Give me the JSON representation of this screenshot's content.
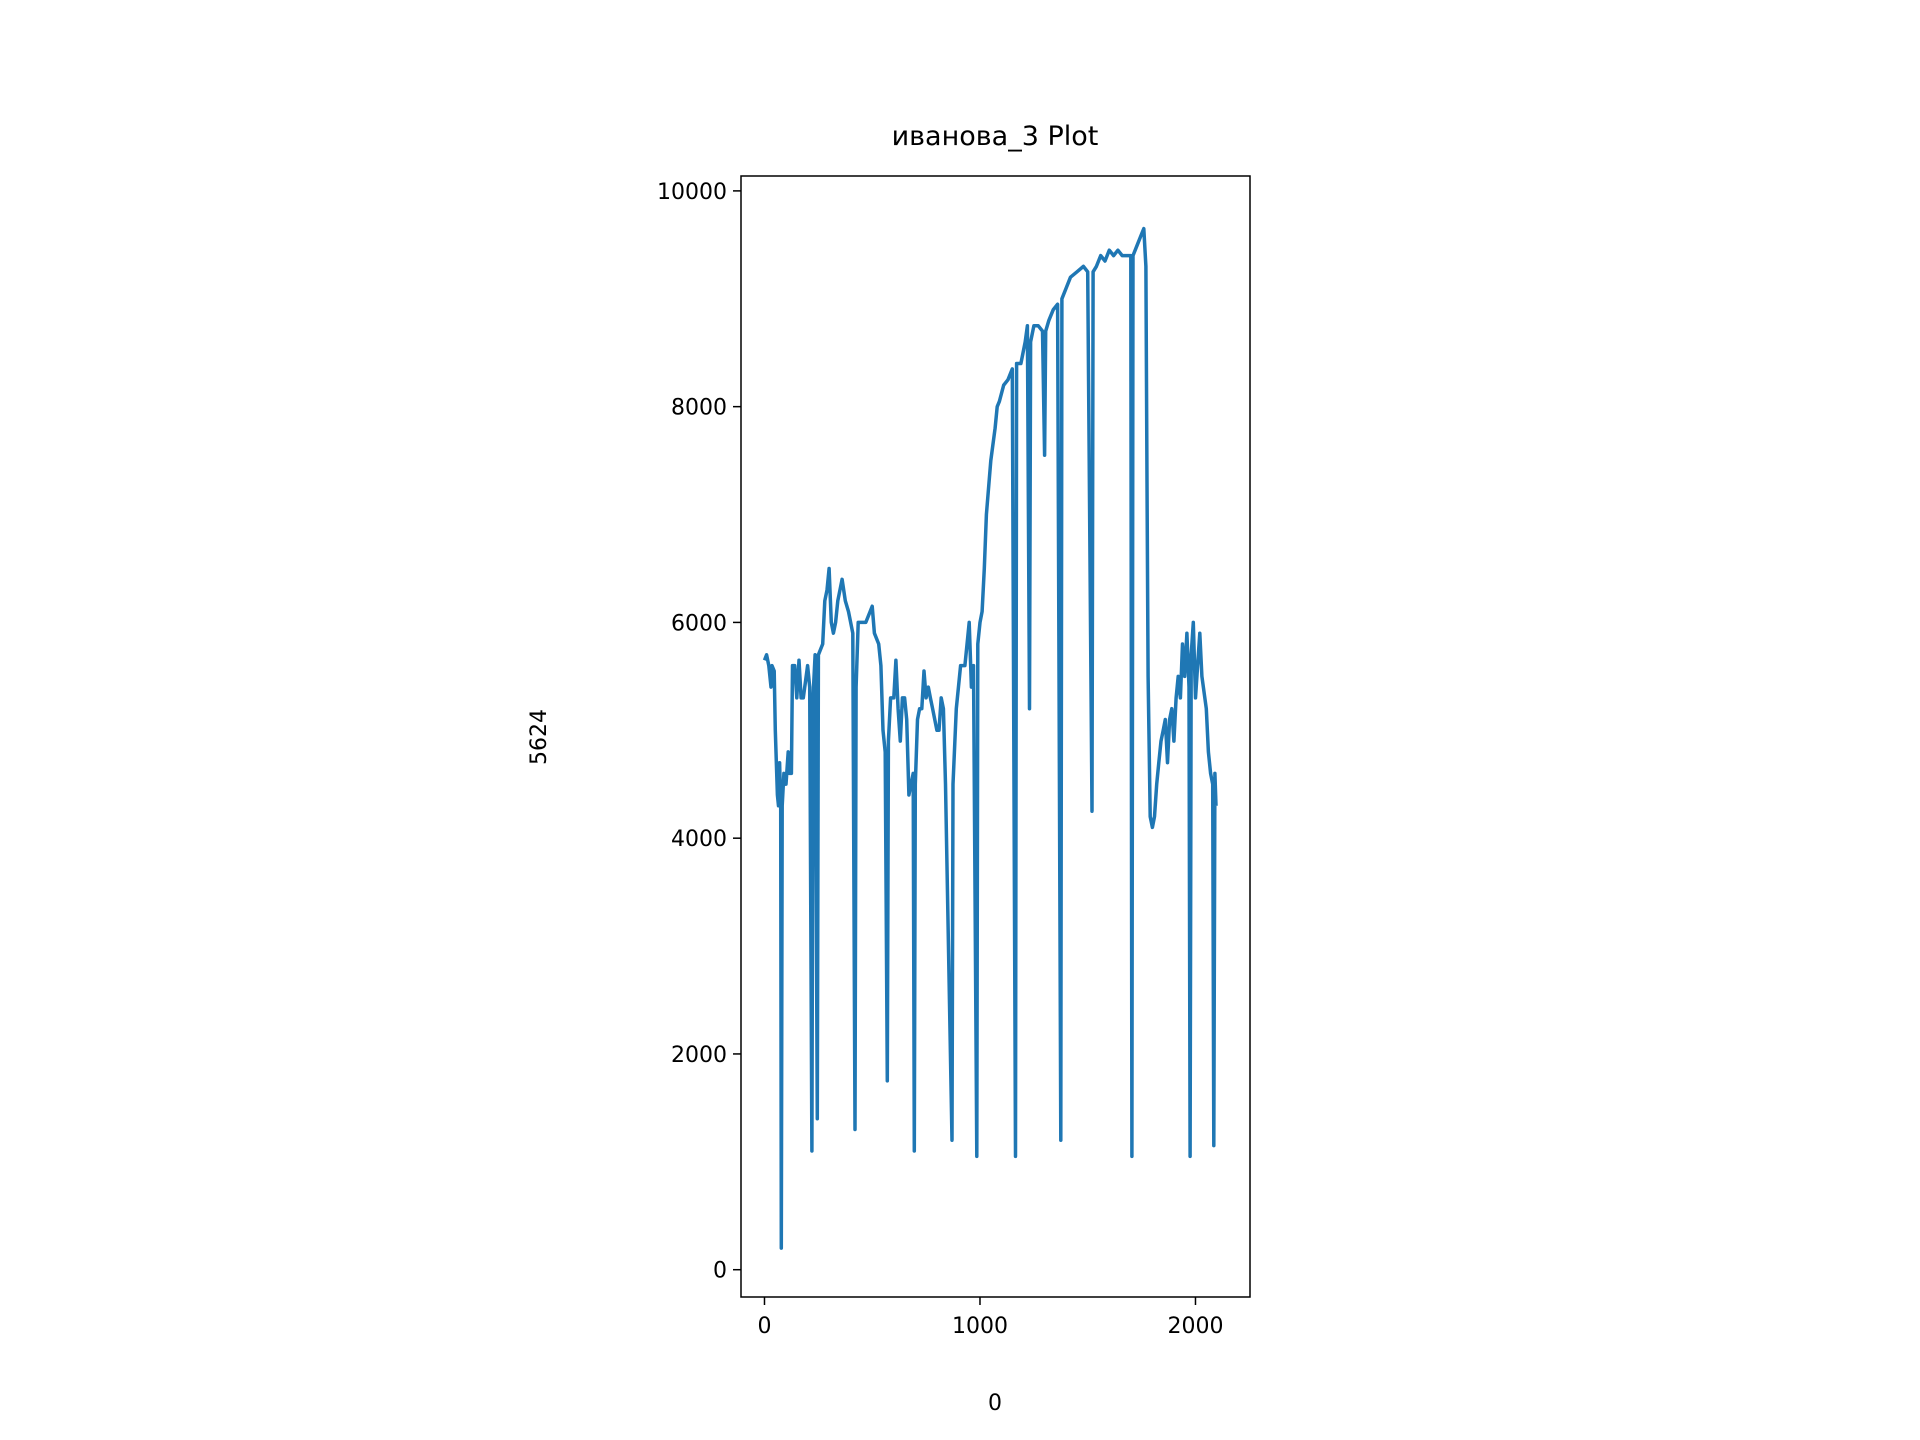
{
  "chart_data": {
    "type": "line",
    "title": "иванова_3 Plot",
    "x_label": "0",
    "y_label": "5624",
    "x": [
      0,
      10,
      20,
      30,
      35,
      45,
      50,
      60,
      65,
      70,
      75,
      78,
      82,
      90,
      100,
      110,
      115,
      125,
      130,
      140,
      150,
      160,
      170,
      180,
      200,
      210,
      220,
      225,
      235,
      245,
      250,
      270,
      280,
      290,
      300,
      310,
      320,
      330,
      340,
      360,
      375,
      390,
      410,
      420,
      425,
      435,
      450,
      470,
      490,
      500,
      510,
      530,
      540,
      550,
      560,
      570,
      575,
      585,
      600,
      610,
      620,
      630,
      640,
      650,
      660,
      670,
      690,
      695,
      700,
      710,
      720,
      730,
      740,
      750,
      760,
      770,
      780,
      800,
      810,
      820,
      830,
      840,
      870,
      875,
      890,
      910,
      930,
      950,
      960,
      970,
      985,
      990,
      1000,
      1010,
      1020,
      1030,
      1050,
      1070,
      1080,
      1090,
      1110,
      1130,
      1150,
      1165,
      1170,
      1190,
      1210,
      1220,
      1230,
      1235,
      1250,
      1270,
      1290,
      1300,
      1305,
      1320,
      1340,
      1360,
      1375,
      1380,
      1400,
      1420,
      1450,
      1480,
      1500,
      1520,
      1525,
      1540,
      1560,
      1580,
      1600,
      1620,
      1640,
      1660,
      1700,
      1705,
      1710,
      1730,
      1750,
      1760,
      1770,
      1775,
      1780,
      1790,
      1800,
      1810,
      1820,
      1830,
      1840,
      1850,
      1860,
      1870,
      1880,
      1890,
      1900,
      1910,
      1920,
      1930,
      1940,
      1950,
      1960,
      1970,
      1975,
      1980,
      1990,
      2000,
      2010,
      2020,
      2030,
      2050,
      2060,
      2070,
      2080,
      2085,
      2090,
      2095
    ],
    "values": [
      5650,
      5700,
      5600,
      5400,
      5600,
      5550,
      5000,
      4400,
      4300,
      4700,
      4300,
      200,
      4300,
      4600,
      4500,
      4800,
      4600,
      4600,
      5600,
      5600,
      5300,
      5650,
      5300,
      5300,
      5600,
      5400,
      1100,
      5300,
      5700,
      1400,
      5700,
      5800,
      6200,
      6300,
      6500,
      6000,
      5900,
      6000,
      6200,
      6400,
      6200,
      6100,
      5900,
      1300,
      5400,
      6000,
      6000,
      6000,
      6100,
      6150,
      5900,
      5800,
      5600,
      5000,
      4800,
      1750,
      4900,
      5300,
      5300,
      5650,
      5200,
      4900,
      5300,
      5300,
      5100,
      4400,
      4600,
      1100,
      4500,
      5100,
      5200,
      5200,
      5550,
      5300,
      5400,
      5300,
      5200,
      5000,
      5000,
      5300,
      5200,
      4500,
      1200,
      4500,
      5200,
      5600,
      5600,
      6000,
      5400,
      5600,
      1050,
      5800,
      6000,
      6100,
      6500,
      7000,
      7500,
      7800,
      8000,
      8050,
      8200,
      8250,
      8350,
      1050,
      8400,
      8400,
      8600,
      8750,
      5200,
      8600,
      8750,
      8750,
      8700,
      7550,
      8700,
      8800,
      8900,
      8950,
      1200,
      9000,
      9100,
      9200,
      9250,
      9300,
      9250,
      4250,
      9250,
      9300,
      9400,
      9350,
      9450,
      9400,
      9450,
      9400,
      9400,
      1050,
      9400,
      9500,
      9600,
      9650,
      9300,
      7300,
      5500,
      4200,
      4100,
      4200,
      4500,
      4700,
      4900,
      5000,
      5100,
      4700,
      5100,
      5200,
      4900,
      5300,
      5500,
      5300,
      5800,
      5500,
      5900,
      5400,
      1050,
      5700,
      6000,
      5300,
      5600,
      5900,
      5500,
      5200,
      4800,
      4600,
      4500,
      1150,
      4600,
      4300
    ],
    "color": "#1f77b4",
    "xlim": [
      -109,
      2253
    ],
    "xticks": [
      0,
      1000,
      2000
    ],
    "ylim": [
      -253,
      10138
    ],
    "yticks": [
      0,
      2000,
      4000,
      6000,
      8000,
      10000
    ]
  }
}
